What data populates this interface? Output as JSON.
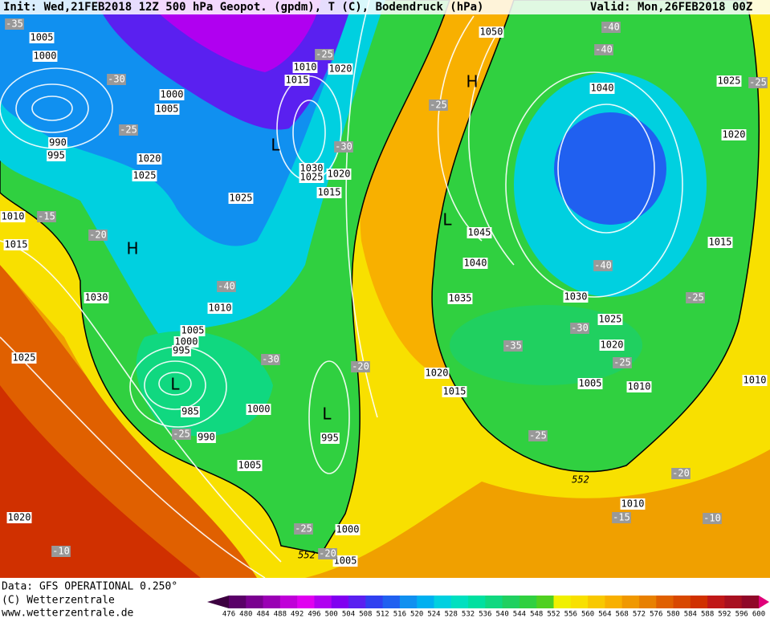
{
  "header": {
    "init": "Init: Wed,21FEB2018 12Z 500 hPa Geopot. (gpdm), T (C), Bodendruck (hPa)",
    "valid": "Valid: Mon,26FEB2018 00Z"
  },
  "map_labels": {
    "pressure": [
      1005,
      1000,
      990,
      995,
      1000,
      1005,
      1020,
      1025,
      1025,
      1010,
      1015,
      1020,
      1030,
      1025,
      1020,
      1015,
      1050,
      1045,
      1040,
      1035,
      1030,
      1025,
      1020,
      1040,
      1025,
      1020,
      1015,
      1010,
      1010,
      1015,
      1030,
      1025,
      1010,
      1005,
      1000,
      995,
      985,
      990,
      1000,
      995,
      1005,
      1020,
      1015,
      1005,
      1010,
      1010,
      1020,
      1000,
      1005
    ],
    "temperature": [
      -35,
      -30,
      -25,
      -25,
      -30,
      -15,
      -20,
      -40,
      -30,
      -20,
      -25,
      -40,
      -40,
      -25,
      -40,
      -25,
      -30,
      -35,
      -25,
      -25,
      -25,
      -25,
      -20,
      -20,
      -15,
      -10,
      -10
    ],
    "centers": [
      "H",
      "L",
      "L",
      "H",
      "L",
      "L"
    ],
    "contour_552": [
      552,
      552
    ]
  },
  "footer": {
    "data": "Data: GFS OPERATIONAL 0.250°",
    "copyright": "(C) Wetterzentrale",
    "url": "www.wetterzentrale.de"
  },
  "colorbar": {
    "ticks": [
      476,
      480,
      484,
      488,
      492,
      496,
      500,
      504,
      508,
      512,
      516,
      520,
      524,
      528,
      532,
      536,
      540,
      544,
      548,
      552,
      556,
      560,
      564,
      568,
      572,
      576,
      580,
      584,
      588,
      592,
      596,
      600
    ],
    "colors": [
      "#3c0040",
      "#5a0068",
      "#7a0090",
      "#9a00b4",
      "#c000d8",
      "#e000f0",
      "#b000f0",
      "#8000f0",
      "#5a20f0",
      "#3040f0",
      "#2060f0",
      "#1090f0",
      "#00b0f0",
      "#00d0e0",
      "#00e0c0",
      "#00e0a0",
      "#10d880",
      "#20d060",
      "#30d040",
      "#50d020",
      "#f0f000",
      "#f8e000",
      "#f8c800",
      "#f8b000",
      "#f09800",
      "#e88000",
      "#e06000",
      "#d84800",
      "#d03000",
      "#c01818",
      "#a81020",
      "#900828",
      "#e0007a"
    ]
  }
}
